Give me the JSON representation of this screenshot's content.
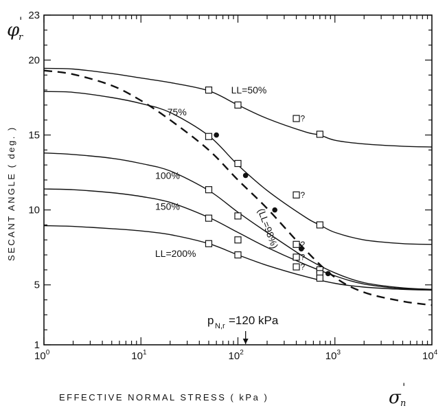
{
  "chart_data": {
    "type": "line",
    "x_scale": "log",
    "xlim": [
      1,
      10000
    ],
    "ylim": [
      1,
      23
    ],
    "x_ticks": [
      {
        "value": 1,
        "base": "10",
        "exp": "0"
      },
      {
        "value": 10,
        "base": "10",
        "exp": "1"
      },
      {
        "value": 100,
        "base": "10",
        "exp": "2"
      },
      {
        "value": 1000,
        "base": "10",
        "exp": "3"
      },
      {
        "value": 10000,
        "base": "10",
        "exp": "4"
      }
    ],
    "y_ticks": [
      1,
      5,
      10,
      15,
      20,
      23
    ],
    "xlabel": "EFFECTIVE  NORMAL  STRESS   ( kPa )",
    "ylabel": "SECANT  ANGLE  ( deg. )",
    "x_symbol": {
      "base": "σ",
      "sub": "n",
      "sup": "'"
    },
    "y_symbol": {
      "base": "φ",
      "sub": "r",
      "sup": "'"
    },
    "grid": false,
    "series": [
      {
        "name": "LL=50%",
        "style": "solid",
        "x": [
          1,
          2,
          5,
          10,
          20,
          50,
          100,
          200,
          500,
          700,
          1000,
          2000,
          5000,
          10000
        ],
        "y": [
          19.45,
          19.4,
          19.1,
          18.8,
          18.5,
          17.95,
          17.0,
          16.1,
          15.2,
          15.0,
          14.65,
          14.4,
          14.25,
          14.2
        ],
        "points": [
          {
            "x": 50,
            "y": 18.0
          },
          {
            "x": 100,
            "y": 17.0
          },
          {
            "x": 700,
            "y": 15.05
          }
        ],
        "label": "LL=50%"
      },
      {
        "name": "75%",
        "style": "solid",
        "x": [
          1,
          2,
          5,
          10,
          20,
          50,
          100,
          200,
          500,
          700,
          1000,
          2000,
          5000,
          10000
        ],
        "y": [
          17.9,
          17.85,
          17.5,
          17.1,
          16.5,
          14.95,
          13.0,
          11.3,
          9.5,
          9.0,
          8.5,
          8.0,
          7.75,
          7.7
        ],
        "points": [
          {
            "x": 50,
            "y": 14.9
          },
          {
            "x": 100,
            "y": 13.1
          },
          {
            "x": 700,
            "y": 9.0
          }
        ],
        "label": "75%"
      },
      {
        "name": "100%",
        "style": "solid",
        "x": [
          1,
          2,
          5,
          10,
          20,
          50,
          100,
          200,
          500,
          1000,
          2000,
          5000,
          10000
        ],
        "y": [
          13.8,
          13.7,
          13.45,
          13.1,
          12.6,
          11.3,
          9.85,
          8.5,
          6.8,
          5.8,
          5.15,
          4.8,
          4.7
        ],
        "points": [
          {
            "x": 50,
            "y": 11.35
          },
          {
            "x": 100,
            "y": 9.6
          },
          {
            "x": 700,
            "y": 6.0
          }
        ],
        "label": "100%"
      },
      {
        "name": "150%",
        "style": "solid",
        "x": [
          1,
          2,
          5,
          10,
          20,
          50,
          100,
          200,
          500,
          1000,
          2000,
          5000,
          10000
        ],
        "y": [
          11.4,
          11.35,
          11.15,
          10.9,
          10.5,
          9.5,
          8.5,
          7.5,
          6.35,
          5.6,
          5.05,
          4.75,
          4.7
        ],
        "points": [
          {
            "x": 50,
            "y": 9.45
          },
          {
            "x": 100,
            "y": 8.0
          },
          {
            "x": 700,
            "y": 5.75
          }
        ],
        "label": "150%"
      },
      {
        "name": "LL=200%",
        "style": "solid",
        "x": [
          1,
          2,
          5,
          10,
          20,
          50,
          100,
          200,
          500,
          1000,
          2000,
          5000,
          10000
        ],
        "y": [
          8.95,
          8.9,
          8.75,
          8.6,
          8.35,
          7.75,
          7.0,
          6.3,
          5.55,
          5.1,
          4.85,
          4.7,
          4.65
        ],
        "points": [
          {
            "x": 50,
            "y": 7.75
          },
          {
            "x": 100,
            "y": 7.0
          },
          {
            "x": 700,
            "y": 5.45
          }
        ],
        "label": "LL=200%"
      },
      {
        "name": "(LL=98%)",
        "style": "dashed",
        "x": [
          1,
          2,
          5,
          10,
          20,
          50,
          100,
          200,
          500,
          1000,
          2000,
          5000,
          10000
        ],
        "y": [
          19.3,
          19.05,
          18.3,
          17.3,
          16.0,
          14.0,
          12.0,
          10.1,
          7.3,
          5.5,
          4.5,
          3.9,
          3.65
        ],
        "points": [
          {
            "x": 60,
            "y": 15.0
          },
          {
            "x": 120,
            "y": 12.3
          },
          {
            "x": 240,
            "y": 10.0
          },
          {
            "x": 450,
            "y": 7.4
          },
          {
            "x": 850,
            "y": 5.75
          }
        ],
        "label": "(LL=98%)"
      }
    ],
    "questionable_points": [
      {
        "x": 400,
        "y": 16.1,
        "label": "?"
      },
      {
        "x": 400,
        "y": 11.0,
        "label": "?"
      },
      {
        "x": 400,
        "y": 7.7,
        "label": "?"
      },
      {
        "x": 400,
        "y": 6.85,
        "label": "?"
      },
      {
        "x": 400,
        "y": 6.2,
        "label": "?"
      }
    ],
    "annotation": {
      "text_main": "p",
      "text_sub": "N,r",
      "text_rest": "=120 kPa",
      "x": 120
    }
  }
}
